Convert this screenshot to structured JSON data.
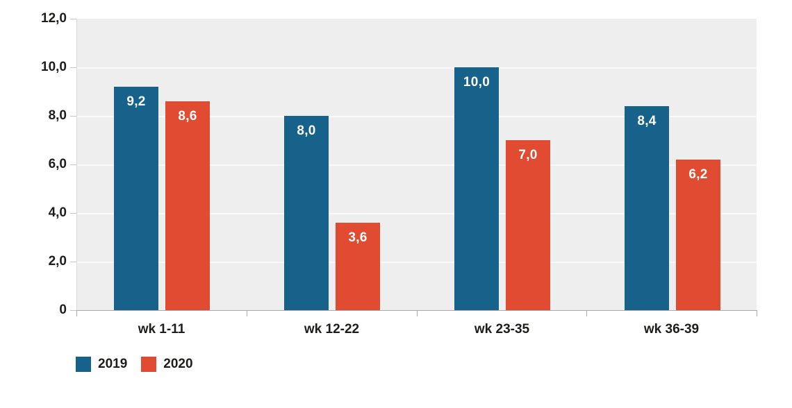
{
  "chart_data": {
    "type": "bar",
    "title": "",
    "xlabel": "",
    "ylabel": "",
    "categories": [
      "wk 1-11",
      "wk 12-22",
      "wk 23-35",
      "wk 36-39"
    ],
    "series": [
      {
        "name": "2019",
        "color": "#16628a",
        "values": [
          9.2,
          8.0,
          10.0,
          8.4
        ],
        "labels": [
          "9,2",
          "8,0",
          "10,0",
          "8,4"
        ]
      },
      {
        "name": "2020",
        "color": "#e04b31",
        "values": [
          8.6,
          3.6,
          7.0,
          6.2
        ],
        "labels": [
          "8,6",
          "3,6",
          "7,0",
          "6,2"
        ]
      }
    ],
    "y_axis": {
      "min": 0,
      "max": 12,
      "tick_step": 2,
      "tick_labels": [
        "0",
        "2,0",
        "4,0",
        "6,0",
        "8,0",
        "10,0",
        "12,0"
      ],
      "gridlines": [
        2,
        4,
        6,
        8,
        10
      ]
    },
    "ylim": [
      0,
      12
    ],
    "grid": true,
    "legend_position": "bottom-left",
    "decimal_separator": ",",
    "plot_background": "#eeeeee",
    "value_label_color": "#ffffff",
    "text_color": "#1d1d1b"
  }
}
